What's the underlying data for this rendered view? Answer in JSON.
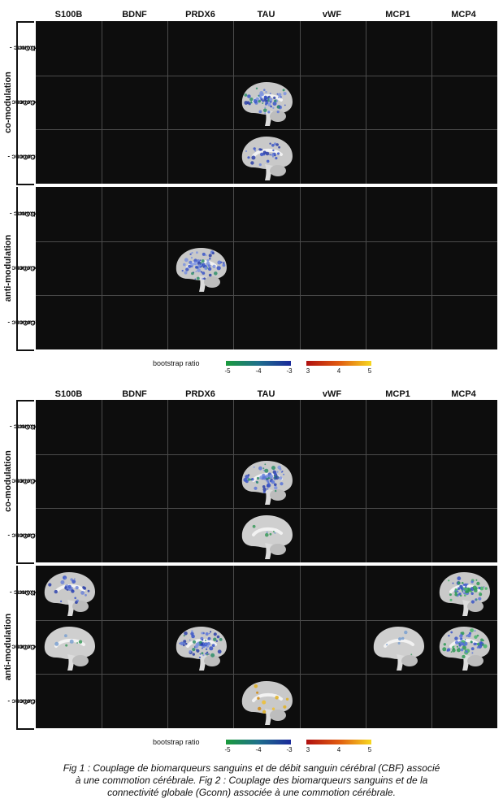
{
  "columns": [
    "S100B",
    "BDNF",
    "PRDX6",
    "TAU",
    "vWF",
    "MCP1",
    "MCP4"
  ],
  "groups": [
    "co-modulation",
    "anti-modulation"
  ],
  "rows": [
    [
      "HxConc -",
      "NoConc"
    ],
    [
      "AcuConc -",
      "NoConc"
    ],
    [
      "AcuConc -",
      "HxConc"
    ]
  ],
  "legend": {
    "title": "bootstrap ratio",
    "negative_ticks": [
      "-5",
      "-4",
      "-3"
    ],
    "positive_ticks": [
      "3",
      "4",
      "5"
    ],
    "negative_colors": [
      "#1a9b3c",
      "#1f6f8c",
      "#1a2a9b"
    ],
    "positive_colors": [
      "#b01010",
      "#e05a10",
      "#f7d820"
    ]
  },
  "figures": [
    {
      "brains": [
        {
          "group": 0,
          "row": 1,
          "col": 3,
          "style": "blue-heavy"
        },
        {
          "group": 0,
          "row": 2,
          "col": 3,
          "style": "blue-light"
        },
        {
          "group": 1,
          "row": 1,
          "col": 2,
          "style": "blue-heavy"
        }
      ]
    },
    {
      "brains": [
        {
          "group": 0,
          "row": 1,
          "col": 3,
          "style": "blue-heavy"
        },
        {
          "group": 0,
          "row": 2,
          "col": 3,
          "style": "gray"
        },
        {
          "group": 1,
          "row": 0,
          "col": 0,
          "style": "blue-light"
        },
        {
          "group": 1,
          "row": 0,
          "col": 6,
          "style": "green-heavy"
        },
        {
          "group": 1,
          "row": 1,
          "col": 0,
          "style": "gray"
        },
        {
          "group": 1,
          "row": 1,
          "col": 2,
          "style": "blue-heavy"
        },
        {
          "group": 1,
          "row": 1,
          "col": 5,
          "style": "gray"
        },
        {
          "group": 1,
          "row": 1,
          "col": 6,
          "style": "green-heavy"
        },
        {
          "group": 1,
          "row": 2,
          "col": 3,
          "style": "yellow"
        }
      ]
    }
  ],
  "caption": {
    "line1": "Fig 1 : Couplage de biomarqueurs sanguins et de débit sanguin cérébral (CBF) associé",
    "line2": "à une commotion cérébrale. Fig 2 : Couplage des biomarqueurs sanguins et de la",
    "line3": "connectivité globale (Gconn) associée à une commotion cérébrale."
  }
}
